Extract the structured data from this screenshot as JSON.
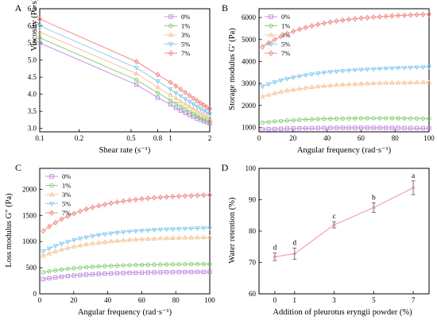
{
  "colors": {
    "0%": "#b987e0",
    "1%": "#7ecb6a",
    "3%": "#f7c08f",
    "5%": "#7ec9ee",
    "7%": "#f0807a"
  },
  "chart_data": [
    {
      "panel": "A",
      "type": "line",
      "xscale": "log",
      "xlabel": "Shear rate (s⁻¹)",
      "ylabel": "Viscosity (Pa·s)",
      "xlim": [
        0.1,
        2
      ],
      "ylim": [
        2.9,
        6.5
      ],
      "xticks": [
        0.1,
        0.2,
        0.5,
        0.8,
        1,
        2
      ],
      "xticklabels": [
        "0.1",
        "0.2",
        "0.5",
        "0.8",
        "1",
        "2"
      ],
      "yticks": [
        3.0,
        3.5,
        4.0,
        4.5,
        5.0,
        5.5,
        6.0,
        6.5
      ],
      "yticklabels": [
        "3.0",
        "3.5",
        "4.0",
        "4.5",
        "5.0",
        "5.5",
        "6.0",
        "6.5"
      ],
      "legend": "top-right",
      "series": [
        {
          "name": "0%",
          "x": [
            0.1,
            0.55,
            0.8,
            1.0,
            1.1,
            1.2,
            1.3,
            1.4,
            1.5,
            1.6,
            1.7,
            1.8,
            1.9,
            2.0
          ],
          "y": [
            5.5,
            4.28,
            3.9,
            3.7,
            3.6,
            3.52,
            3.45,
            3.39,
            3.34,
            3.29,
            3.25,
            3.21,
            3.18,
            3.15
          ]
        },
        {
          "name": "1%",
          "x": [
            0.1,
            0.55,
            0.8,
            1.0,
            1.1,
            1.2,
            1.3,
            1.4,
            1.5,
            1.6,
            1.7,
            1.8,
            1.9,
            2.0
          ],
          "y": [
            5.65,
            4.42,
            4.04,
            3.82,
            3.73,
            3.64,
            3.56,
            3.49,
            3.43,
            3.37,
            3.32,
            3.28,
            3.24,
            3.2
          ]
        },
        {
          "name": "3%",
          "x": [
            0.1,
            0.55,
            0.8,
            1.0,
            1.1,
            1.2,
            1.3,
            1.4,
            1.5,
            1.6,
            1.7,
            1.8,
            1.9,
            2.0
          ],
          "y": [
            5.82,
            4.6,
            4.2,
            3.98,
            3.88,
            3.79,
            3.71,
            3.64,
            3.57,
            3.51,
            3.45,
            3.4,
            3.35,
            3.3
          ]
        },
        {
          "name": "5%",
          "x": [
            0.1,
            0.55,
            0.8,
            1.0,
            1.1,
            1.2,
            1.3,
            1.4,
            1.5,
            1.6,
            1.7,
            1.8,
            1.9,
            2.0
          ],
          "y": [
            6.0,
            4.77,
            4.38,
            4.15,
            4.04,
            3.95,
            3.86,
            3.78,
            3.71,
            3.64,
            3.58,
            3.52,
            3.47,
            3.42
          ]
        },
        {
          "name": "7%",
          "x": [
            0.1,
            0.55,
            0.8,
            1.0,
            1.1,
            1.2,
            1.3,
            1.4,
            1.5,
            1.6,
            1.7,
            1.8,
            1.9,
            2.0
          ],
          "y": [
            6.2,
            4.95,
            4.57,
            4.35,
            4.24,
            4.14,
            4.05,
            3.96,
            3.88,
            3.81,
            3.74,
            3.68,
            3.62,
            3.57
          ]
        }
      ]
    },
    {
      "panel": "B",
      "type": "line",
      "xlabel": "Angular frequency (rad·s⁻¹)",
      "ylabel": "Storage modulus G′ (Pa)",
      "xlim": [
        0,
        100
      ],
      "ylim": [
        800,
        6400
      ],
      "xticks": [
        0,
        20,
        40,
        60,
        80,
        100
      ],
      "xticklabels": [
        "0",
        "20",
        "40",
        "60",
        "80",
        "100"
      ],
      "yticks": [
        1000,
        2000,
        3000,
        4000,
        5000,
        6000
      ],
      "yticklabels": [
        "1000",
        "2000",
        "3000",
        "4000",
        "5000",
        "6000"
      ],
      "legend": "top-left",
      "model": "start-plateau",
      "npoints": 28,
      "series": [
        {
          "name": "0%",
          "y_start": 900,
          "y_plateau": 1000,
          "y_end": 960
        },
        {
          "name": "1%",
          "y_start": 1200,
          "y_plateau": 1450,
          "y_end": 1400
        },
        {
          "name": "3%",
          "y_start": 2350,
          "y_plateau": 3050,
          "y_end": 3050
        },
        {
          "name": "5%",
          "y_start": 2800,
          "y_plateau": 3700,
          "y_end": 3750
        },
        {
          "name": "7%",
          "y_start": 4550,
          "y_plateau": 6100,
          "y_end": 6150
        }
      ]
    },
    {
      "panel": "C",
      "type": "line",
      "xlabel": "Angular frequency (rad·s⁻¹)",
      "ylabel": "Loss modulus G″ (Pa)",
      "xlim": [
        0,
        100
      ],
      "ylim": [
        0,
        2400
      ],
      "xticks": [
        0,
        20,
        40,
        60,
        80,
        100
      ],
      "xticklabels": [
        "0",
        "20",
        "40",
        "60",
        "80",
        "100"
      ],
      "yticks": [
        0,
        500,
        1000,
        1500,
        2000
      ],
      "yticklabels": [
        "0",
        "500",
        "1000",
        "1500",
        "2000"
      ],
      "legend": "top-left",
      "model": "start-plateau",
      "npoints": 28,
      "series": [
        {
          "name": "0%",
          "y_start": 270,
          "y_plateau": 420,
          "y_end": 420
        },
        {
          "name": "1%",
          "y_start": 400,
          "y_plateau": 570,
          "y_end": 570
        },
        {
          "name": "3%",
          "y_start": 700,
          "y_plateau": 1080,
          "y_end": 1080
        },
        {
          "name": "5%",
          "y_start": 780,
          "y_plateau": 1250,
          "y_end": 1260
        },
        {
          "name": "7%",
          "y_start": 1150,
          "y_plateau": 1880,
          "y_end": 1890
        }
      ]
    },
    {
      "panel": "D",
      "type": "line",
      "xlabel": "Addition of pleurotus eryngii powder (%)",
      "ylabel": "Water retention (%)",
      "xlim": [
        -0.8,
        7.8
      ],
      "ylim": [
        60,
        100
      ],
      "xticks": [
        0,
        1,
        3,
        5,
        7
      ],
      "xticklabels": [
        "0",
        "1",
        "3",
        "5",
        "7"
      ],
      "yticks": [
        60,
        70,
        80,
        90,
        100
      ],
      "yticklabels": [
        "60",
        "70",
        "80",
        "90",
        "100"
      ],
      "categories": [
        "0",
        "1",
        "3",
        "5",
        "7"
      ],
      "x": [
        0,
        1,
        3,
        5,
        7
      ],
      "values": [
        71.8,
        72.8,
        82.0,
        87.5,
        93.8
      ],
      "errors": [
        1.2,
        1.8,
        1.0,
        1.5,
        2.2
      ],
      "labels": [
        "d",
        "d",
        "c",
        "b",
        "a"
      ],
      "color": "#f0a0b8"
    }
  ]
}
